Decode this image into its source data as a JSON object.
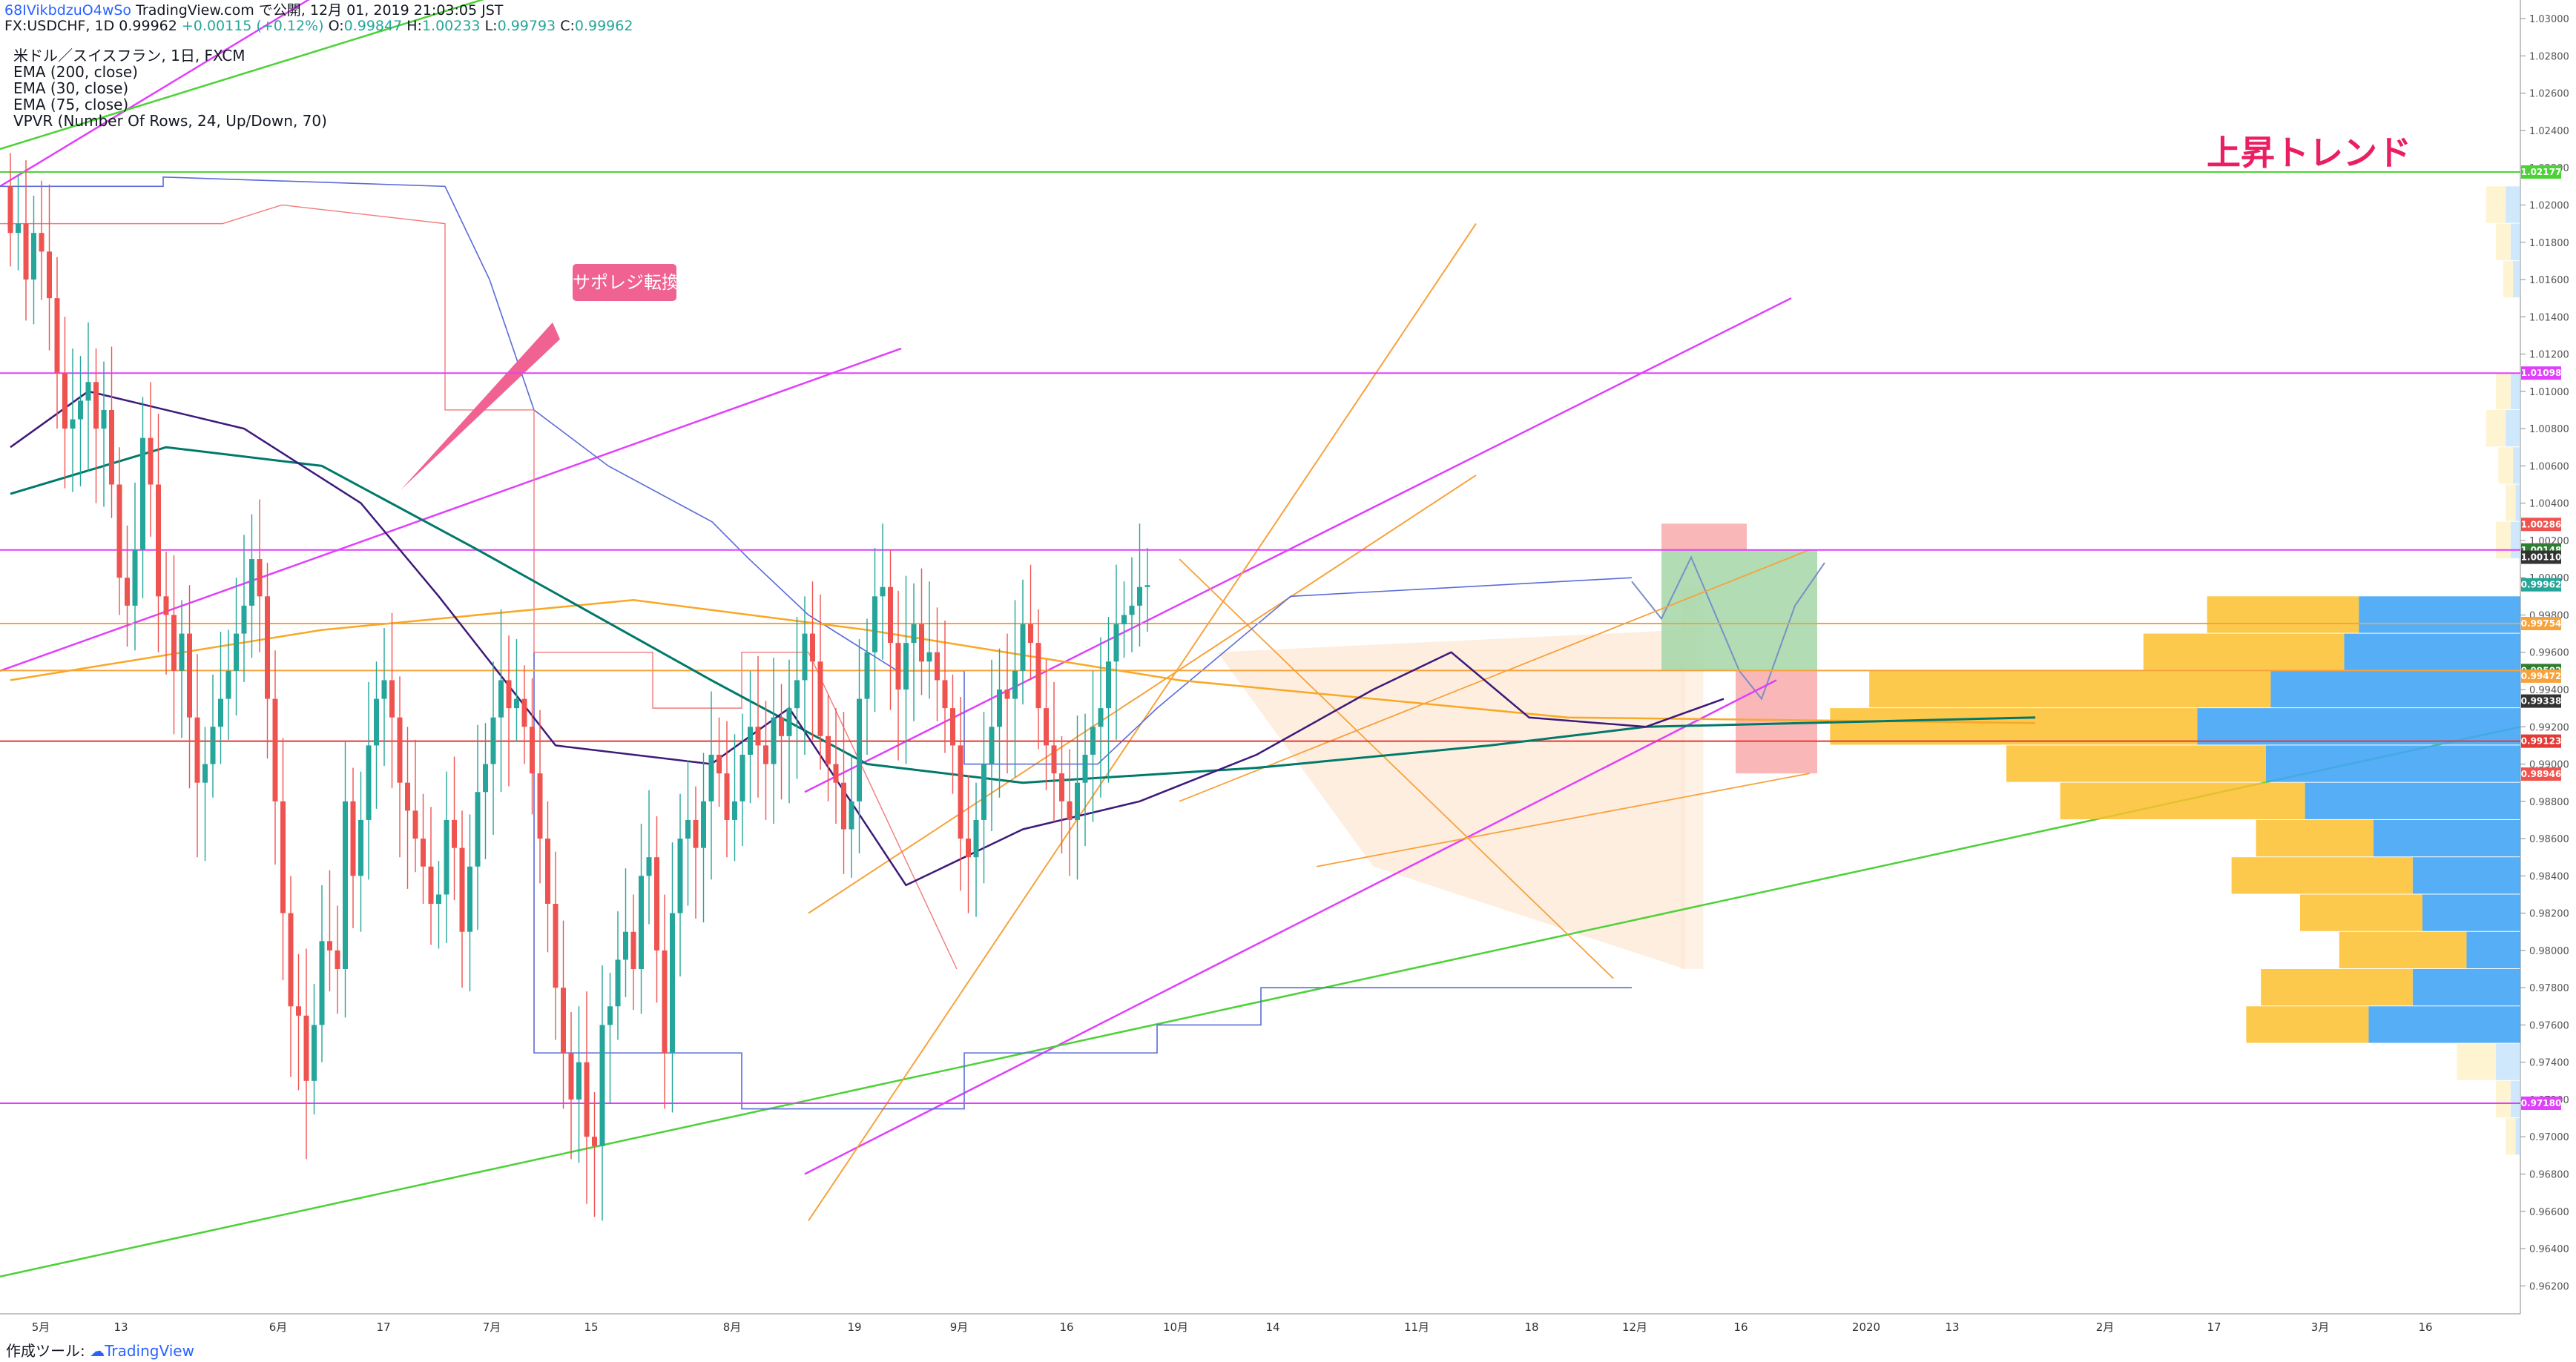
{
  "header": {
    "author_line_user": "68IVikbdzuO4wSo",
    "author_line_rest": " TradingView.com で公開, 12月 01, 2019 21:03:05 JST",
    "symbol_line": "FX:USDCHF, 1D 0.99962",
    "change": "+0.00115 (+0.12%)",
    "ohlc": {
      "O": "0.99847",
      "H": "1.00233",
      "L": "0.99793",
      "C": "0.99962"
    }
  },
  "indicators": [
    "米ドル／スイスフラン, 1日, FXCM",
    "EMA (200, close)",
    "EMA (30, close)",
    "EMA (75, close)",
    "VPVR (Number Of Rows, 24, Up/Down, 70)"
  ],
  "annotations": {
    "trend": "上昇トレンド",
    "callout": "サポレジ転換"
  },
  "footer": {
    "prefix": "作成ツール: ",
    "brand": "TradingView"
  },
  "colors": {
    "up": "#26a69a",
    "down": "#ef5350",
    "magenta": "#e040fb",
    "green_line": "#4cd137",
    "orange": "#f7a23b",
    "ema200": "#f9a825",
    "ema30": "#3d1a7a",
    "ema75": "#00796b",
    "trend_text": "#e91e63",
    "red_line": "#e53935"
  },
  "chart_data": {
    "type": "candlestick",
    "symbol": "FX:USDCHF",
    "timeframe": "1D",
    "ylim": [
      0.9605,
      1.031
    ],
    "y_ticks": [
      "1.03000",
      "1.02800",
      "1.02600",
      "1.02400",
      "1.02200",
      "1.02000",
      "1.01800",
      "1.01600",
      "1.01400",
      "1.01200",
      "1.01000",
      "1.00800",
      "1.00600",
      "1.00400",
      "1.00200",
      "1.00000",
      "0.99800",
      "0.99600",
      "0.99400",
      "0.99200",
      "0.99000",
      "0.98800",
      "0.98600",
      "0.98400",
      "0.98200",
      "0.98000",
      "0.97800",
      "0.97600",
      "0.97400",
      "0.97200",
      "0.97000",
      "0.96800",
      "0.96600",
      "0.96400",
      "0.96200"
    ],
    "x_ticks": [
      "5月",
      "13",
      "6月",
      "17",
      "7月",
      "15",
      "8月",
      "19",
      "9月",
      "16",
      "10月",
      "14",
      "11月",
      "18",
      "12月",
      "16",
      "2020",
      "13",
      "2月",
      "17",
      "3月",
      "16"
    ],
    "price_labels": [
      {
        "value": "1.02177",
        "color": "#4cd137"
      },
      {
        "value": "1.01098",
        "color": "#e040fb"
      },
      {
        "value": "1.00286",
        "color": "#ef5350"
      },
      {
        "value": "1.00149",
        "color": "#e040fb"
      },
      {
        "value": "1.00148",
        "color": "#2e7d32"
      },
      {
        "value": "1.00110",
        "color": "#333333"
      },
      {
        "value": "0.99962",
        "color": "#26a69a"
      },
      {
        "value": "0.99754",
        "color": "#f7a23b"
      },
      {
        "value": "0.99502",
        "color": "#2e7d32"
      },
      {
        "value": "0.99472",
        "color": "#f7a23b"
      },
      {
        "value": "0.99338",
        "color": "#333333"
      },
      {
        "value": "0.99123",
        "color": "#e53935"
      },
      {
        "value": "0.98946",
        "color": "#ef5350"
      },
      {
        "value": "0.97180",
        "color": "#e040fb"
      }
    ],
    "horizontal_levels": [
      {
        "price": 1.02177,
        "color": "#4cd137"
      },
      {
        "price": 1.01098,
        "color": "#e040fb"
      },
      {
        "price": 1.00149,
        "color": "#e040fb"
      },
      {
        "price": 0.99754,
        "color": "#f7a23b"
      },
      {
        "price": 0.99502,
        "color": "#f7a23b"
      },
      {
        "price": 0.99123,
        "color": "#e53935"
      },
      {
        "price": 0.9718,
        "color": "#e040fb"
      }
    ],
    "vpvr": [
      {
        "price": 1.02,
        "up": 0.04,
        "down": 0.03
      },
      {
        "price": 1.018,
        "up": 0.03,
        "down": 0.02
      },
      {
        "price": 1.016,
        "up": 0.02,
        "down": 0.015
      },
      {
        "price": 1.01,
        "up": 0.03,
        "down": 0.02
      },
      {
        "price": 1.008,
        "up": 0.04,
        "down": 0.03
      },
      {
        "price": 1.006,
        "up": 0.03,
        "down": 0.015
      },
      {
        "price": 1.004,
        "up": 0.02,
        "down": 0.01
      },
      {
        "price": 1.002,
        "up": 0.03,
        "down": 0.02
      },
      {
        "price": 0.998,
        "up": 0.31,
        "down": 0.33
      },
      {
        "price": 0.996,
        "up": 0.41,
        "down": 0.36
      },
      {
        "price": 0.994,
        "up": 0.82,
        "down": 0.51
      },
      {
        "price": 0.992,
        "up": 0.75,
        "down": 0.66
      },
      {
        "price": 0.99,
        "up": 0.53,
        "down": 0.52
      },
      {
        "price": 0.988,
        "up": 0.5,
        "down": 0.44
      },
      {
        "price": 0.986,
        "up": 0.24,
        "down": 0.3
      },
      {
        "price": 0.984,
        "up": 0.37,
        "down": 0.22
      },
      {
        "price": 0.982,
        "up": 0.25,
        "down": 0.2
      },
      {
        "price": 0.98,
        "up": 0.26,
        "down": 0.11
      },
      {
        "price": 0.978,
        "up": 0.31,
        "down": 0.22
      },
      {
        "price": 0.976,
        "up": 0.25,
        "down": 0.31
      },
      {
        "price": 0.974,
        "up": 0.08,
        "down": 0.05
      },
      {
        "price": 0.972,
        "up": 0.03,
        "down": 0.02
      },
      {
        "price": 0.97,
        "up": 0.02,
        "down": 0.01
      }
    ],
    "ema200": [
      [
        0,
        0.9945
      ],
      [
        40,
        0.9972
      ],
      [
        80,
        0.9988
      ],
      [
        110,
        0.9972
      ],
      [
        150,
        0.9945
      ],
      [
        200,
        0.9925
      ],
      [
        260,
        0.9922
      ]
    ],
    "ema75": [
      [
        0,
        1.0045
      ],
      [
        20,
        1.007
      ],
      [
        40,
        1.006
      ],
      [
        60,
        1.0015
      ],
      [
        90,
        0.9945
      ],
      [
        110,
        0.99
      ],
      [
        130,
        0.989
      ],
      [
        160,
        0.9898
      ],
      [
        190,
        0.991
      ],
      [
        210,
        0.992
      ],
      [
        260,
        0.9925
      ]
    ],
    "ema30": [
      [
        0,
        1.007
      ],
      [
        10,
        1.01
      ],
      [
        30,
        1.008
      ],
      [
        45,
        1.004
      ],
      [
        55,
        0.999
      ],
      [
        70,
        0.991
      ],
      [
        90,
        0.99
      ],
      [
        100,
        0.993
      ],
      [
        115,
        0.9835
      ],
      [
        130,
        0.9865
      ],
      [
        145,
        0.988
      ],
      [
        160,
        0.9905
      ],
      [
        175,
        0.994
      ],
      [
        185,
        0.996
      ],
      [
        195,
        0.9925
      ],
      [
        210,
        0.992
      ],
      [
        220,
        0.9935
      ]
    ],
    "close": [
      1.0185,
      1.019,
      1.016,
      1.0185,
      1.0175,
      1.015,
      1.011,
      1.008,
      1.0085,
      1.0095,
      1.0105,
      1.008,
      1.009,
      1.005,
      1.0,
      0.9985,
      1.0015,
      1.0075,
      1.005,
      0.999,
      0.998,
      0.995,
      0.997,
      0.9925,
      0.989,
      0.99,
      0.992,
      0.9935,
      0.995,
      0.997,
      0.9985,
      1.001,
      0.999,
      0.9935,
      0.988,
      0.982,
      0.977,
      0.9765,
      0.973,
      0.976,
      0.9805,
      0.98,
      0.979,
      0.988,
      0.984,
      0.987,
      0.991,
      0.9935,
      0.9945,
      0.9925,
      0.989,
      0.9875,
      0.986,
      0.9845,
      0.9825,
      0.983,
      0.987,
      0.9855,
      0.981,
      0.9845,
      0.9885,
      0.99,
      0.9925,
      0.9945,
      0.993,
      0.9935,
      0.992,
      0.9895,
      0.986,
      0.9825,
      0.978,
      0.9745,
      0.972,
      0.974,
      0.97,
      0.9695,
      0.976,
      0.977,
      0.9795,
      0.981,
      0.979,
      0.984,
      0.985,
      0.98,
      0.9745,
      0.982,
      0.986,
      0.987,
      0.9855,
      0.988,
      0.9905,
      0.9895,
      0.987,
      0.988,
      0.9905,
      0.992,
      0.991,
      0.99,
      0.9925,
      0.9915,
      0.993,
      0.9945,
      0.997,
      0.9955,
      0.9915,
      0.99,
      0.989,
      0.9865,
      0.988,
      0.9935,
      0.996,
      0.999,
      0.9995,
      0.9965,
      0.994,
      0.9965,
      0.9975,
      0.9955,
      0.996,
      0.9945,
      0.993,
      0.991,
      0.986,
      0.985,
      0.987,
      0.99,
      0.992,
      0.994,
      0.9935,
      0.995,
      0.9975,
      0.9965,
      0.993,
      0.991,
      0.9895,
      0.988,
      0.987,
      0.989,
      0.9905,
      0.992,
      0.993,
      0.9955,
      0.9975,
      0.998,
      0.9985,
      0.9995,
      0.9996
    ]
  }
}
